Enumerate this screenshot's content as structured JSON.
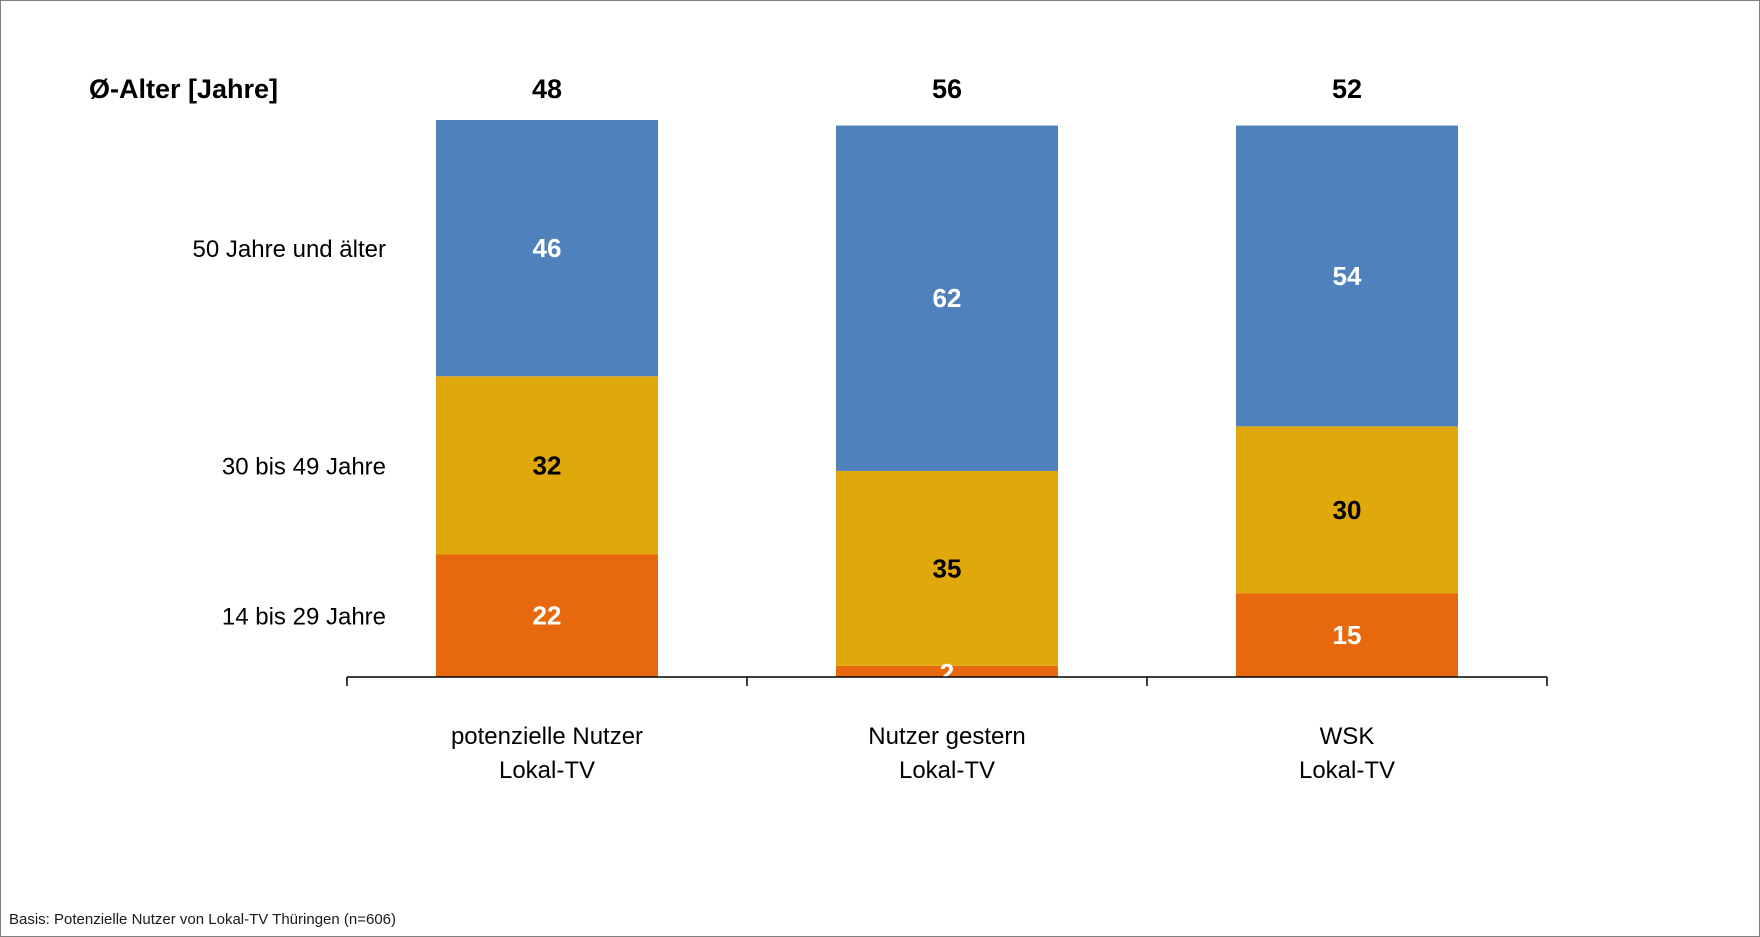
{
  "chart_data": {
    "type": "bar",
    "stacked": true,
    "categories": [
      [
        "potenzielle Nutzer",
        "Lokal-TV"
      ],
      [
        "Nutzer gestern",
        "Lokal-TV"
      ],
      [
        "WSK",
        "Lokal-TV"
      ]
    ],
    "series": [
      {
        "name": "14 bis 29 Jahre",
        "values": [
          22,
          2,
          15
        ],
        "color": "#E8690D",
        "label_color": "#ffffff"
      },
      {
        "name": "30 bis 49 Jahre",
        "values": [
          32,
          35,
          30
        ],
        "color": "#E0A80A",
        "label_color": "#000000"
      },
      {
        "name": "50 Jahre und älter",
        "values": [
          46,
          62,
          54
        ],
        "color": "#4F81BD",
        "label_color": "#ffffff"
      }
    ],
    "top_label": "Ø-Alter [Jahre]",
    "top_values": [
      "48",
      "56",
      "52"
    ],
    "ylim": [
      0,
      100
    ],
    "grid": false,
    "legend": "left"
  },
  "footnote": "Basis: Potenzielle Nutzer von Lokal-TV Thüringen (n=606)"
}
